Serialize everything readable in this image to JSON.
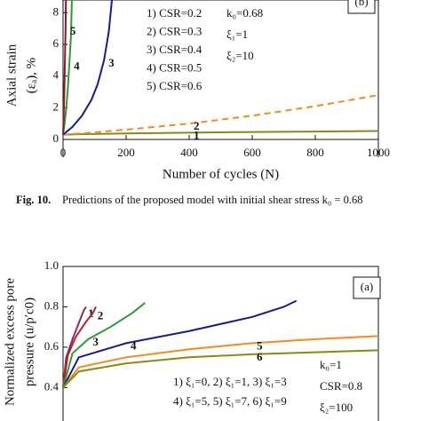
{
  "chart_data": [
    {
      "type": "line",
      "panel": "(b)",
      "xlabel": "Number of cycles (N)",
      "ylabel": [
        "Axial strain",
        "(εₐ), %"
      ],
      "xlim": [
        0,
        1000
      ],
      "xticks": [
        0,
        200,
        400,
        600,
        800,
        1000
      ],
      "ylim": [
        0,
        8.8
      ],
      "yticks": [
        0,
        2,
        4,
        6,
        8
      ],
      "annotations": [
        "1) CSR=0.2",
        "2) CSR=0.3",
        "3) CSR=0.4",
        "4) CSR=0.5",
        "5) CSR=0.6"
      ],
      "params": [
        "k₀=0.68",
        "ξ₁=1",
        "ξ₂=10"
      ],
      "series": [
        {
          "name": "1",
          "color": "#8a8a1a",
          "x": [
            0,
            50,
            200,
            400,
            600,
            800,
            1000
          ],
          "values": [
            0.3,
            0.33,
            0.38,
            0.43,
            0.47,
            0.5,
            0.53
          ]
        },
        {
          "name": "2",
          "color": "#f28a1e",
          "dashed": true,
          "x": [
            0,
            100,
            200,
            400,
            600,
            800,
            1000
          ],
          "values": [
            0.3,
            0.45,
            0.62,
            1.0,
            1.5,
            2.1,
            2.8
          ]
        },
        {
          "name": "3",
          "color": "#1a1a8c",
          "x": [
            0,
            30,
            60,
            90,
            110,
            130,
            145,
            155
          ],
          "values": [
            0.3,
            0.8,
            1.5,
            2.5,
            3.5,
            5.0,
            6.8,
            8.8
          ]
        },
        {
          "name": "4",
          "color": "#2e9a3a",
          "x": [
            0,
            5,
            10,
            15,
            20,
            25,
            28
          ],
          "values": [
            0.3,
            1,
            2,
            3.2,
            4.8,
            6.5,
            8.8
          ]
        },
        {
          "name": "5",
          "color": "#8b1a2a",
          "x": [
            0,
            2,
            4,
            6,
            8,
            9
          ],
          "values": [
            0.3,
            1.5,
            3,
            5,
            7,
            8.8
          ]
        }
      ]
    },
    {
      "type": "line",
      "panel": "(a)",
      "ylabel": [
        "Normalized excess pore",
        "pressure (u/p′c0)"
      ],
      "xlim": [
        0,
        1000
      ],
      "ylim": [
        0.25,
        1.0
      ],
      "yticks": [
        0.4,
        0.6,
        0.8,
        {
          "value": 1.0,
          "label": "1.0"
        }
      ],
      "annotations": [
        "1) ξ₁=0, 2) ξ₁=1, 3) ξ₁=3",
        "4) ξ₁=5, 5) ξ₁=7, 6) ξ₁=9"
      ],
      "params": [
        "k₀=1",
        "CSR=0.8",
        "ξ₂=100"
      ],
      "series": [
        {
          "name": "1",
          "color": "#8b2a6a",
          "x": [
            0,
            10,
            30,
            50,
            65,
            73
          ],
          "values": [
            0.4,
            0.55,
            0.64,
            0.72,
            0.78,
            0.8
          ]
        },
        {
          "name": "2",
          "color": "#b8202a",
          "x": [
            0,
            15,
            40,
            70,
            95,
            104
          ],
          "values": [
            0.4,
            0.56,
            0.65,
            0.72,
            0.77,
            0.8
          ]
        },
        {
          "name": "3",
          "color": "#2e9a3a",
          "x": [
            0,
            30,
            80,
            150,
            220,
            260
          ],
          "values": [
            0.4,
            0.57,
            0.64,
            0.7,
            0.77,
            0.82
          ]
        },
        {
          "name": "4",
          "color": "#1a1a8c",
          "x": [
            0,
            50,
            200,
            400,
            600,
            700,
            740
          ],
          "values": [
            0.4,
            0.55,
            0.62,
            0.68,
            0.75,
            0.8,
            0.83
          ]
        },
        {
          "name": "5",
          "color": "#f28a1e",
          "x": [
            0,
            50,
            200,
            400,
            600,
            800,
            1000
          ],
          "values": [
            0.4,
            0.5,
            0.55,
            0.59,
            0.62,
            0.64,
            0.655
          ]
        },
        {
          "name": "6",
          "color": "#8a8a1a",
          "x": [
            0,
            50,
            200,
            400,
            600,
            800,
            1000
          ],
          "values": [
            0.4,
            0.48,
            0.52,
            0.55,
            0.565,
            0.575,
            0.585
          ]
        }
      ]
    }
  ],
  "caption": {
    "label": "Fig. 10.",
    "text": "Predictions of the proposed model with initial shear stress k₀ = 0.68"
  }
}
